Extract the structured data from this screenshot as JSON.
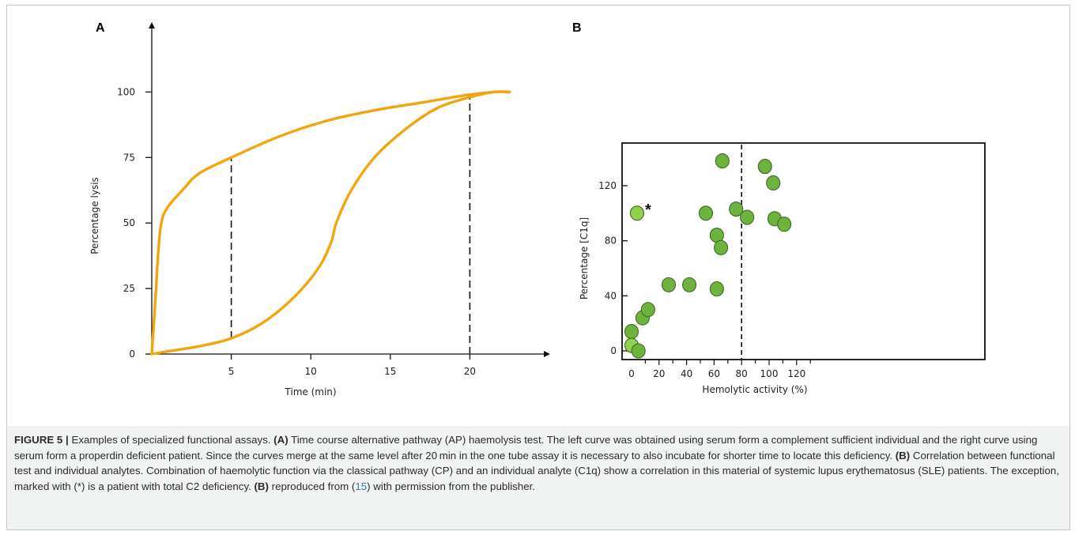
{
  "colors": {
    "curve": "#f2a60d",
    "dot_fill": "#6fb33f",
    "dot_fill_light": "#8fd14f",
    "dot_stroke": "#3d6b1f",
    "axis": "#111111",
    "caption_bg": "#f1f2f2",
    "caption_ref": "#2f7ab8"
  },
  "panels": {
    "a_letter": "A",
    "b_letter": "B"
  },
  "chart_data": [
    {
      "type": "line",
      "panel": "A",
      "xlabel": "Time (min)",
      "ylabel": "Percentage  lysis",
      "xlim": [
        0,
        27
      ],
      "ylim": [
        0,
        115
      ],
      "x_ticks": [
        5,
        10,
        15,
        20
      ],
      "y_ticks": [
        0,
        25,
        50,
        75,
        100
      ],
      "series": [
        {
          "x": [
            0,
            0.2,
            0.4,
            0.6,
            1,
            2,
            3,
            5,
            8,
            11,
            14,
            17,
            20,
            21.5,
            22.5
          ],
          "y": [
            0,
            18,
            38,
            50,
            56,
            63,
            69,
            75,
            83,
            89,
            93,
            96,
            99,
            100,
            100
          ]
        },
        {
          "x": [
            0,
            1,
            3,
            5,
            7,
            9,
            10.5,
            11.3,
            11.6,
            12.5,
            14,
            16,
            18,
            20,
            21.5,
            22.5
          ],
          "y": [
            0,
            1,
            3,
            6,
            12,
            22,
            33,
            43,
            50,
            62,
            75,
            86,
            94,
            98,
            100,
            100
          ]
        }
      ],
      "reference_lines": [
        {
          "x": 5,
          "y_from": 6,
          "y_to": 75
        },
        {
          "x": 20,
          "y_from": 0,
          "y_to": 99
        }
      ]
    },
    {
      "type": "scatter",
      "panel": "B",
      "xlabel": "Hemolytic activity (%)",
      "ylabel": "Percentage [C1q]",
      "xlim": [
        0,
        135
      ],
      "ylim": [
        -5,
        145
      ],
      "x_ticks": [
        0,
        20,
        40,
        60,
        80,
        100,
        120
      ],
      "y_ticks": [
        0,
        40,
        80,
        120
      ],
      "reference_line_x": 80,
      "points": [
        {
          "x": 0,
          "y": 14
        },
        {
          "x": 0,
          "y": 4,
          "light": true
        },
        {
          "x": 5,
          "y": 0
        },
        {
          "x": 4,
          "y": 100,
          "light": true,
          "mark": "*"
        },
        {
          "x": 8,
          "y": 24
        },
        {
          "x": 12,
          "y": 30
        },
        {
          "x": 27,
          "y": 48
        },
        {
          "x": 42,
          "y": 48
        },
        {
          "x": 54,
          "y": 100
        },
        {
          "x": 62,
          "y": 84
        },
        {
          "x": 62,
          "y": 45
        },
        {
          "x": 65,
          "y": 75
        },
        {
          "x": 66,
          "y": 138
        },
        {
          "x": 76,
          "y": 103
        },
        {
          "x": 84,
          "y": 97
        },
        {
          "x": 97,
          "y": 134
        },
        {
          "x": 103,
          "y": 122
        },
        {
          "x": 104,
          "y": 96
        },
        {
          "x": 111,
          "y": 92
        }
      ]
    }
  ],
  "caption": {
    "label": "FIGURE 5 |",
    "t1": " Examples of specialized functional assays. ",
    "a_ref": "(A)",
    "t2": " Time course alternative pathway (AP) haemolysis test. The left curve was obtained using serum form a complement sufficient individual and the right curve using serum form a properdin deficient patient. Since the curves merge at the same level after 20 min in the one tube assay it is necessary to also incubate for shorter time to locate this deficiency. ",
    "b_ref1": "(B)",
    "t3": " Correlation between functional test and individual analytes. Combination of haemolytic function via the classical pathway (CP) and an individual analyte (C1q) show a correlation in this material of systemic lupus erythematosus (SLE) patients. The exception, marked with (*) is a patient with total C2 deficiency. ",
    "b_ref2": "(B)",
    "t4": " reproduced from (",
    "cite": "15",
    "t5": ") with permission from the publisher."
  }
}
